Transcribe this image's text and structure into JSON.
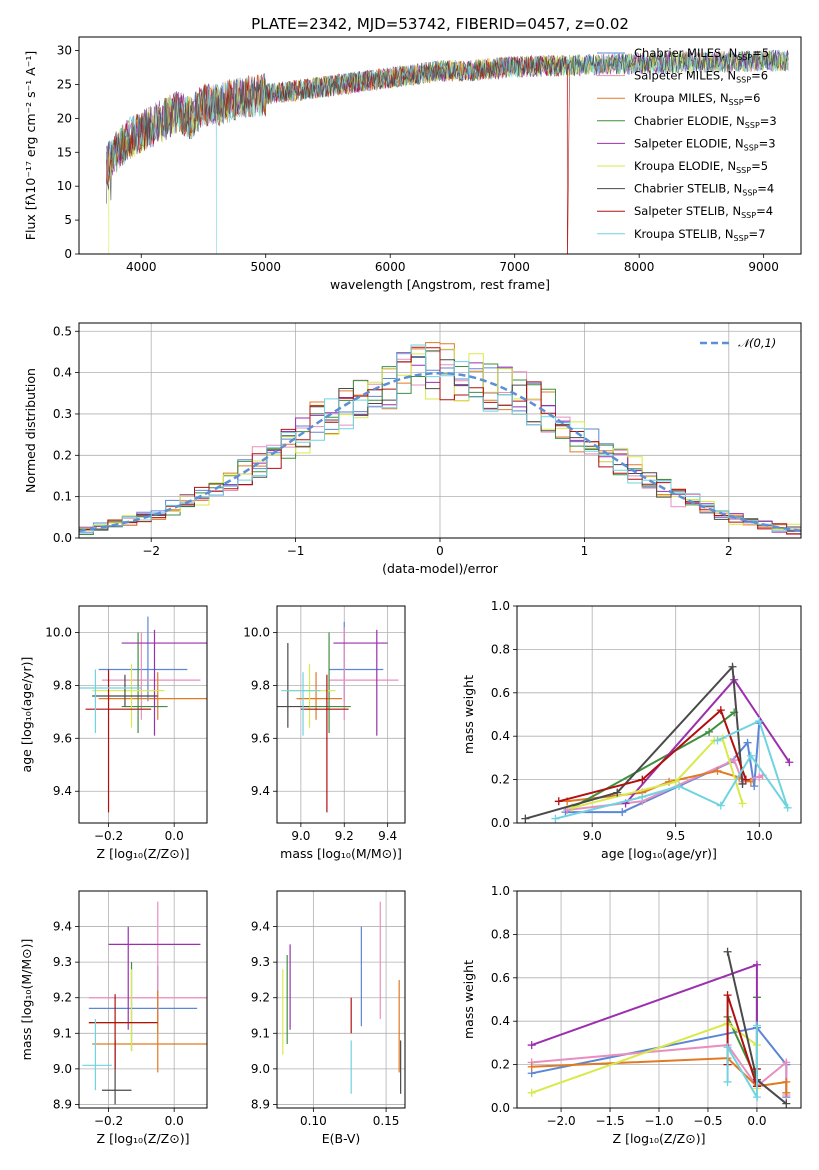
{
  "figure": {
    "title": "PLATE=2342, MJD=53742, FIBERID=0457, z=0.02"
  },
  "models": [
    {
      "name": "Chabrier MILES",
      "n_ssp": "5",
      "color": "#5b87d6"
    },
    {
      "name": "Salpeter MILES",
      "n_ssp": "6",
      "color": "#e88fbf"
    },
    {
      "name": "Kroupa MILES",
      "n_ssp": "6",
      "color": "#e07a23"
    },
    {
      "name": "Chabrier ELODIE",
      "n_ssp": "3",
      "color": "#3f8f3f"
    },
    {
      "name": "Salpeter ELODIE",
      "n_ssp": "3",
      "color": "#9b2fae"
    },
    {
      "name": "Kroupa ELODIE",
      "n_ssp": "5",
      "color": "#d7ea4a"
    },
    {
      "name": "Chabrier STELIB",
      "n_ssp": "4",
      "color": "#4a4a4a"
    },
    {
      "name": "Salpeter STELIB",
      "n_ssp": "4",
      "color": "#b01010"
    },
    {
      "name": "Kroupa STELIB",
      "n_ssp": "7",
      "color": "#6fd3e0"
    }
  ],
  "chart_data": [
    {
      "id": "spectrum",
      "type": "line",
      "xlabel": "wavelength [Angstrom, rest frame]",
      "ylabel": "Flux [fλ10⁻¹⁷ erg cm⁻² s⁻¹ A⁻¹]",
      "xlim": [
        3500,
        9300
      ],
      "ylim": [
        0,
        32
      ],
      "xticks": [
        4000,
        5000,
        6000,
        7000,
        8000,
        9000
      ],
      "yticks": [
        0,
        5,
        10,
        15,
        20,
        25,
        30
      ],
      "grid": false,
      "legend": "top-right",
      "series_note": "noisy spectra",
      "continuum": {
        "x": [
          3720,
          3800,
          3900,
          4000,
          4100,
          4200,
          4300,
          4400,
          4500,
          4600,
          4800,
          5000,
          5200,
          5400,
          5600,
          5800,
          6000,
          6200,
          6400,
          6600,
          6800,
          7000,
          7200,
          7400,
          7600,
          7800,
          8000,
          8200,
          8400,
          8600,
          8800,
          9000,
          9200
        ],
        "y": [
          13,
          15,
          17,
          18,
          19,
          20,
          21,
          20,
          22,
          22,
          23,
          23.5,
          24,
          24.5,
          25,
          25.5,
          26,
          26.5,
          27,
          27,
          27.3,
          27.6,
          27.7,
          27.8,
          27.9,
          28,
          28.1,
          28.2,
          28.3,
          28.3,
          28.4,
          28.5,
          28.5
        ]
      },
      "drops": [
        {
          "x": 3740,
          "series": 5
        },
        {
          "x": 4600,
          "series": 8
        },
        {
          "x": 6800,
          "series": 5
        },
        {
          "x": 7420,
          "series": 7
        }
      ]
    },
    {
      "id": "residuals",
      "type": "histogram",
      "xlabel": "(data-model)/error",
      "ylabel": "Normed distribution",
      "xlim": [
        -2.5,
        2.5
      ],
      "ylim": [
        0,
        0.52
      ],
      "xticks": [
        -2,
        -1,
        0,
        1,
        2
      ],
      "xticklabels": [
        "−2",
        "−1",
        "0",
        "1",
        "2"
      ],
      "yticks": [
        0,
        0.1,
        0.2,
        0.3,
        0.4,
        0.5
      ],
      "yticklabels": [
        "0.0",
        "0.1",
        "0.2",
        "0.3",
        "0.4",
        "0.5"
      ],
      "grid": true,
      "legend": "top-right",
      "reference": {
        "label": "𝒩(0,1)",
        "type": "normal",
        "mean": 0,
        "sigma": 1
      },
      "bin_width": 0.1
    },
    {
      "id": "age_vs_Z",
      "type": "errorbar",
      "xlabel": "Z [log₁₀(Z/Z⊙)]",
      "ylabel": "age  [log₁₀(age/yr)]",
      "xlim": [
        -0.29,
        0.1
      ],
      "ylim": [
        9.28,
        10.1
      ],
      "xticks": [
        -0.2,
        0.0
      ],
      "xticklabels": [
        "−0.2",
        "0.0"
      ],
      "yticks": [
        9.4,
        9.6,
        9.8,
        10.0
      ],
      "yticklabels": [
        "9.4",
        "9.6",
        "9.8",
        "10.0"
      ],
      "grid": true,
      "points": [
        {
          "m": 0,
          "x": -0.08,
          "y": 9.86,
          "ex": [
            0.15,
            0.12
          ],
          "ey": [
            0.12,
            0.2
          ]
        },
        {
          "m": 1,
          "x": -0.1,
          "y": 9.82,
          "ex": [
            0.12,
            0.18
          ],
          "ey": [
            0.15,
            0.18
          ]
        },
        {
          "m": 2,
          "x": -0.05,
          "y": 9.75,
          "ex": [
            0.18,
            0.15
          ],
          "ey": [
            0.08,
            0.1
          ]
        },
        {
          "m": 3,
          "x": -0.11,
          "y": 9.72,
          "ex": [
            0.05,
            0.09
          ],
          "ey": [
            0.1,
            0.28
          ]
        },
        {
          "m": 4,
          "x": -0.06,
          "y": 9.96,
          "ex": [
            0.1,
            0.16
          ],
          "ey": [
            0.35,
            0.05
          ]
        },
        {
          "m": 5,
          "x": -0.13,
          "y": 9.78,
          "ex": [
            0.12,
            0.1
          ],
          "ey": [
            0.14,
            0.1
          ]
        },
        {
          "m": 6,
          "x": -0.15,
          "y": 9.76,
          "ex": [
            0.1,
            0.1
          ],
          "ey": [
            0.04,
            0.08
          ]
        },
        {
          "m": 7,
          "x": -0.2,
          "y": 9.71,
          "ex": [
            0.07,
            0.13
          ],
          "ey": [
            0.39,
            0.15
          ]
        },
        {
          "m": 8,
          "x": -0.24,
          "y": 9.79,
          "ex": [
            0.1,
            0.14
          ],
          "ey": [
            0.17,
            0.07
          ]
        }
      ]
    },
    {
      "id": "age_vs_mass",
      "type": "errorbar",
      "xlabel": "mass [log₁₀(M/M⊙)]",
      "ylabel": "",
      "xlim": [
        8.89,
        9.48
      ],
      "ylim": [
        9.28,
        10.1
      ],
      "xticks": [
        9.0,
        9.2,
        9.4
      ],
      "xticklabels": [
        "9.0",
        "9.2",
        "9.4"
      ],
      "yticks": [
        9.4,
        9.6,
        9.8,
        10.0
      ],
      "yticklabels": [
        "9.4",
        "9.6",
        "9.8",
        "10.0"
      ],
      "grid": true,
      "points": [
        {
          "m": 0,
          "x": 9.2,
          "y": 9.86,
          "ex": [
            0.07,
            0.18
          ],
          "ey": [
            0.12,
            0.18
          ]
        },
        {
          "m": 1,
          "x": 9.2,
          "y": 9.82,
          "ex": [
            0.07,
            0.25
          ],
          "ey": [
            0.15,
            0.2
          ]
        },
        {
          "m": 2,
          "x": 9.07,
          "y": 9.75,
          "ex": [
            0.09,
            0.12
          ],
          "ey": [
            0.08,
            0.1
          ]
        },
        {
          "m": 3,
          "x": 9.13,
          "y": 9.72,
          "ex": [
            0.12,
            0.1
          ],
          "ey": [
            0.1,
            0.28
          ]
        },
        {
          "m": 4,
          "x": 9.35,
          "y": 9.96,
          "ex": [
            0.2,
            0.05
          ],
          "ey": [
            0.35,
            0.05
          ]
        },
        {
          "m": 5,
          "x": 9.04,
          "y": 9.78,
          "ex": [
            0.1,
            0.12
          ],
          "ey": [
            0.14,
            0.1
          ]
        },
        {
          "m": 6,
          "x": 8.94,
          "y": 9.72,
          "ex": [
            0.05,
            0.1
          ],
          "ey": [
            0.08,
            0.24
          ]
        },
        {
          "m": 7,
          "x": 9.12,
          "y": 9.71,
          "ex": [
            0.12,
            0.1
          ],
          "ey": [
            0.39,
            0.13
          ]
        },
        {
          "m": 8,
          "x": 9.01,
          "y": 9.78,
          "ex": [
            0.1,
            0.08
          ],
          "ey": [
            0.17,
            0.07
          ]
        }
      ]
    },
    {
      "id": "weight_vs_age",
      "type": "line",
      "xlabel": "age  [log₁₀(age/yr)]",
      "ylabel": "mass weight",
      "xlim": [
        8.55,
        10.25
      ],
      "ylim": [
        0,
        1
      ],
      "xticks": [
        9.0,
        9.5,
        10.0
      ],
      "xticklabels": [
        "9.0",
        "9.5",
        "10.0"
      ],
      "yticks": [
        0,
        0.2,
        0.4,
        0.6,
        0.8,
        1.0
      ],
      "yticklabels": [
        "0.0",
        "0.2",
        "0.4",
        "0.6",
        "0.8",
        "1.0"
      ],
      "grid": true,
      "series": [
        {
          "m": 0,
          "x": [
            8.84,
            9.18,
            9.83,
            9.93,
            9.97,
            10.0
          ],
          "y": [
            0.05,
            0.05,
            0.28,
            0.37,
            0.17,
            0.46
          ]
        },
        {
          "m": 1,
          "x": [
            8.85,
            9.3,
            9.85,
            9.9,
            10.02,
            10.0
          ],
          "y": [
            0.06,
            0.1,
            0.29,
            0.19,
            0.22,
            0.21
          ]
        },
        {
          "m": 2,
          "x": [
            8.85,
            9.3,
            9.46,
            9.75,
            9.88,
            9.95
          ],
          "y": [
            0.1,
            0.14,
            0.19,
            0.24,
            0.21,
            0.19
          ]
        },
        {
          "m": 3,
          "x": [
            8.88,
            9.7,
            9.85
          ],
          "y": [
            0.07,
            0.42,
            0.51
          ]
        },
        {
          "m": 4,
          "x": [
            9.2,
            9.85,
            10.18
          ],
          "y": [
            0.09,
            0.66,
            0.28
          ]
        },
        {
          "m": 5,
          "x": [
            8.88,
            9.5,
            9.73,
            9.78,
            9.9
          ],
          "y": [
            0.07,
            0.19,
            0.38,
            0.39,
            0.09
          ]
        },
        {
          "m": 6,
          "x": [
            8.6,
            9.15,
            9.84,
            9.9
          ],
          "y": [
            0.02,
            0.14,
            0.72,
            0.18
          ]
        },
        {
          "m": 7,
          "x": [
            8.8,
            9.3,
            9.77,
            9.92
          ],
          "y": [
            0.1,
            0.2,
            0.52,
            0.2
          ]
        },
        {
          "m": 8,
          "x": [
            8.78,
            9.3,
            9.52,
            9.77,
            9.95,
            10.17,
            10.0,
            9.75
          ],
          "y": [
            0.02,
            0.12,
            0.17,
            0.08,
            0.31,
            0.07,
            0.47,
            0.38
          ]
        }
      ]
    },
    {
      "id": "mass_vs_Z",
      "type": "errorbar",
      "xlabel": "Z [log₁₀(Z/Z⊙)]",
      "ylabel": "mass [log₁₀(M/M⊙)]",
      "xlim": [
        -0.29,
        0.1
      ],
      "ylim": [
        8.89,
        9.5
      ],
      "xticks": [
        -0.2,
        0.0
      ],
      "xticklabels": [
        "−0.2",
        "0.0"
      ],
      "yticks": [
        8.9,
        9.0,
        9.1,
        9.2,
        9.3,
        9.4
      ],
      "yticklabels": [
        "8.9",
        "9.0",
        "9.1",
        "9.2",
        "9.3",
        "9.4"
      ],
      "grid": true,
      "points": [
        {
          "m": 0,
          "x": -0.05,
          "y": 9.17,
          "ex": [
            0.21,
            0.12
          ],
          "ey": [
            0.05,
            0.12
          ]
        },
        {
          "m": 1,
          "x": -0.05,
          "y": 9.2,
          "ex": [
            0.21,
            0.15
          ],
          "ey": [
            0.1,
            0.27
          ]
        },
        {
          "m": 2,
          "x": -0.05,
          "y": 9.07,
          "ex": [
            0.2,
            0.15
          ],
          "ey": [
            0.08,
            0.15
          ]
        },
        {
          "m": 3,
          "x": -0.13,
          "y": 9.13,
          "ex": [
            0.13,
            0.05
          ],
          "ey": [
            0.08,
            0.17
          ]
        },
        {
          "m": 4,
          "x": -0.14,
          "y": 9.35,
          "ex": [
            0.06,
            0.22
          ],
          "ey": [
            0.24,
            0.05
          ]
        },
        {
          "m": 5,
          "x": -0.13,
          "y": 9.13,
          "ex": [
            0.12,
            0.08
          ],
          "ey": [
            0.08,
            0.15
          ]
        },
        {
          "m": 6,
          "x": -0.18,
          "y": 8.94,
          "ex": [
            0.04,
            0.05
          ],
          "ey": [
            0.04,
            0.14
          ]
        },
        {
          "m": 7,
          "x": -0.18,
          "y": 9.13,
          "ex": [
            0.08,
            0.13
          ],
          "ey": [
            0.13,
            0.08
          ]
        },
        {
          "m": 8,
          "x": -0.24,
          "y": 9.01,
          "ex": [
            0.04,
            0.05
          ],
          "ey": [
            0.07,
            0.13
          ]
        }
      ]
    },
    {
      "id": "mass_vs_ebv",
      "type": "errorbar",
      "xlabel": "E(B-V)",
      "ylabel": "",
      "xlim": [
        0.075,
        0.163
      ],
      "ylim": [
        8.89,
        9.5
      ],
      "xticks": [
        0.1,
        0.15
      ],
      "xticklabels": [
        "0.10",
        "0.15"
      ],
      "yticks": [
        8.9,
        9.0,
        9.1,
        9.2,
        9.3,
        9.4
      ],
      "yticklabels": [
        "8.9",
        "9.0",
        "9.1",
        "9.2",
        "9.3",
        "9.4"
      ],
      "grid": true,
      "points": [
        {
          "m": 0,
          "x": 0.133,
          "y": 9.17,
          "ex": [
            0,
            0
          ],
          "ey": [
            0.05,
            0.23
          ]
        },
        {
          "m": 1,
          "x": 0.146,
          "y": 9.3,
          "ex": [
            0,
            0
          ],
          "ey": [
            0.16,
            0.17
          ]
        },
        {
          "m": 2,
          "x": 0.159,
          "y": 9.07,
          "ex": [
            0,
            0
          ],
          "ey": [
            0.08,
            0.18
          ]
        },
        {
          "m": 3,
          "x": 0.082,
          "y": 9.17,
          "ex": [
            0,
            0
          ],
          "ey": [
            0.1,
            0.15
          ]
        },
        {
          "m": 4,
          "x": 0.084,
          "y": 9.24,
          "ex": [
            0,
            0
          ],
          "ey": [
            0.13,
            0.11
          ]
        },
        {
          "m": 5,
          "x": 0.079,
          "y": 9.13,
          "ex": [
            0,
            0
          ],
          "ey": [
            0.09,
            0.15
          ]
        },
        {
          "m": 6,
          "x": 0.16,
          "y": 9.0,
          "ex": [
            0,
            0
          ],
          "ey": [
            0.07,
            0.08
          ]
        },
        {
          "m": 7,
          "x": 0.126,
          "y": 9.13,
          "ex": [
            0,
            0
          ],
          "ey": [
            0.03,
            0.07
          ]
        },
        {
          "m": 8,
          "x": 0.126,
          "y": 9.0,
          "ex": [
            0,
            0
          ],
          "ey": [
            0.07,
            0.08
          ]
        }
      ]
    },
    {
      "id": "weight_vs_Z",
      "type": "line",
      "xlabel": "Z [log₁₀(Z/Z⊙)]",
      "ylabel": "mass weight",
      "xlim": [
        -2.45,
        0.45
      ],
      "ylim": [
        0,
        1
      ],
      "xticks": [
        -2.0,
        -1.5,
        -1.0,
        -0.5,
        0.0
      ],
      "xticklabels": [
        "−2.0",
        "−1.5",
        "−1.0",
        "−0.5",
        "0.0"
      ],
      "yticks": [
        0,
        0.2,
        0.4,
        0.6,
        0.8,
        1.0
      ],
      "yticklabels": [
        "0.0",
        "0.2",
        "0.4",
        "0.6",
        "0.8",
        "1.0"
      ],
      "grid": true,
      "series": [
        {
          "m": 0,
          "x": [
            -2.3,
            0.0,
            0.3,
            0.3
          ],
          "y": [
            0.16,
            0.37,
            0.2,
            0.05
          ]
        },
        {
          "m": 1,
          "x": [
            -2.3,
            -0.3,
            0.0,
            0.3,
            0.3
          ],
          "y": [
            0.21,
            0.29,
            0.1,
            0.21,
            0.06
          ]
        },
        {
          "m": 2,
          "x": [
            -2.3,
            -0.3,
            0.0,
            0.3,
            0.3
          ],
          "y": [
            0.19,
            0.23,
            0.1,
            0.12,
            0.07
          ]
        },
        {
          "m": 3,
          "x": [
            -0.3,
            0.0,
            0.0
          ],
          "y": [
            0.42,
            0.13,
            0.51
          ]
        },
        {
          "m": 4,
          "x": [
            -2.3,
            0.0,
            0.0
          ],
          "y": [
            0.29,
            0.66,
            0.12
          ]
        },
        {
          "m": 5,
          "x": [
            -2.3,
            -0.3,
            0.0,
            0.0
          ],
          "y": [
            0.07,
            0.39,
            0.29,
            0.09
          ]
        },
        {
          "m": 6,
          "x": [
            -0.3,
            0.0,
            0.3
          ],
          "y": [
            0.72,
            0.13,
            0.02
          ]
        },
        {
          "m": 7,
          "x": [
            -0.3,
            -0.3,
            0.0,
            0.0
          ],
          "y": [
            0.2,
            0.52,
            0.1,
            0.18
          ]
        },
        {
          "m": 8,
          "x": [
            -0.3,
            -0.3,
            0.0,
            0.0
          ],
          "y": [
            0.12,
            0.28,
            0.05,
            0.38
          ]
        }
      ]
    }
  ]
}
